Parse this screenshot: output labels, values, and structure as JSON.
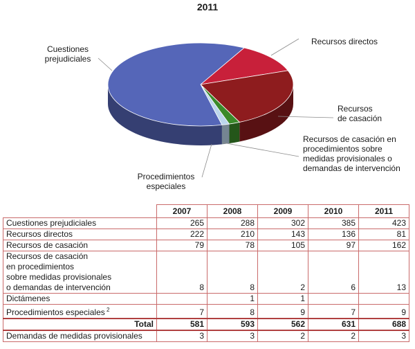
{
  "chart_data": [
    {
      "type": "pie",
      "title": "2011",
      "slices": [
        {
          "label": "Recursos directos",
          "value": 81,
          "color": "#c8203a"
        },
        {
          "label": "Recursos\nde casación",
          "value": 162,
          "color": "#8e1c1e"
        },
        {
          "label": "Recursos de casación en\nprocedimientos sobre\nmedidas provisionales o\ndemandas de intervención",
          "value": 13,
          "color": "#3a8a2a"
        },
        {
          "label": "Procedimientos\nespeciales",
          "value": 9,
          "color": "#bcd6ec"
        },
        {
          "label": "Cuestiones\nprejudiciales",
          "value": 423,
          "color": "#5566b8"
        }
      ]
    },
    {
      "type": "table",
      "columns": [
        "2007",
        "2008",
        "2009",
        "2010",
        "2011"
      ],
      "rows": [
        {
          "name": "Cuestiones prejudiciales",
          "values": [
            "265",
            "288",
            "302",
            "385",
            "423"
          ]
        },
        {
          "name": "Recursos directos",
          "values": [
            "222",
            "210",
            "143",
            "136",
            "81"
          ]
        },
        {
          "name": "Recursos de casación",
          "values": [
            "79",
            "78",
            "105",
            "97",
            "162"
          ]
        },
        {
          "name": "Recursos de casación\nen procedimientos\nsobre medidas provisionales\no demandas de intervención",
          "values": [
            "8",
            "8",
            "2",
            "6",
            "13"
          ]
        },
        {
          "name": "Dictámenes",
          "values": [
            "",
            "1",
            "1",
            "",
            ""
          ]
        },
        {
          "name": "Procedimientos especiales",
          "note": "2",
          "values": [
            "7",
            "8",
            "9",
            "7",
            "9"
          ]
        }
      ],
      "total": {
        "name": "Total",
        "values": [
          "581",
          "593",
          "562",
          "631",
          "688"
        ]
      },
      "extra": {
        "name": "Demandas de medidas provisionales",
        "values": [
          "3",
          "3",
          "2",
          "2",
          "3"
        ]
      }
    }
  ]
}
